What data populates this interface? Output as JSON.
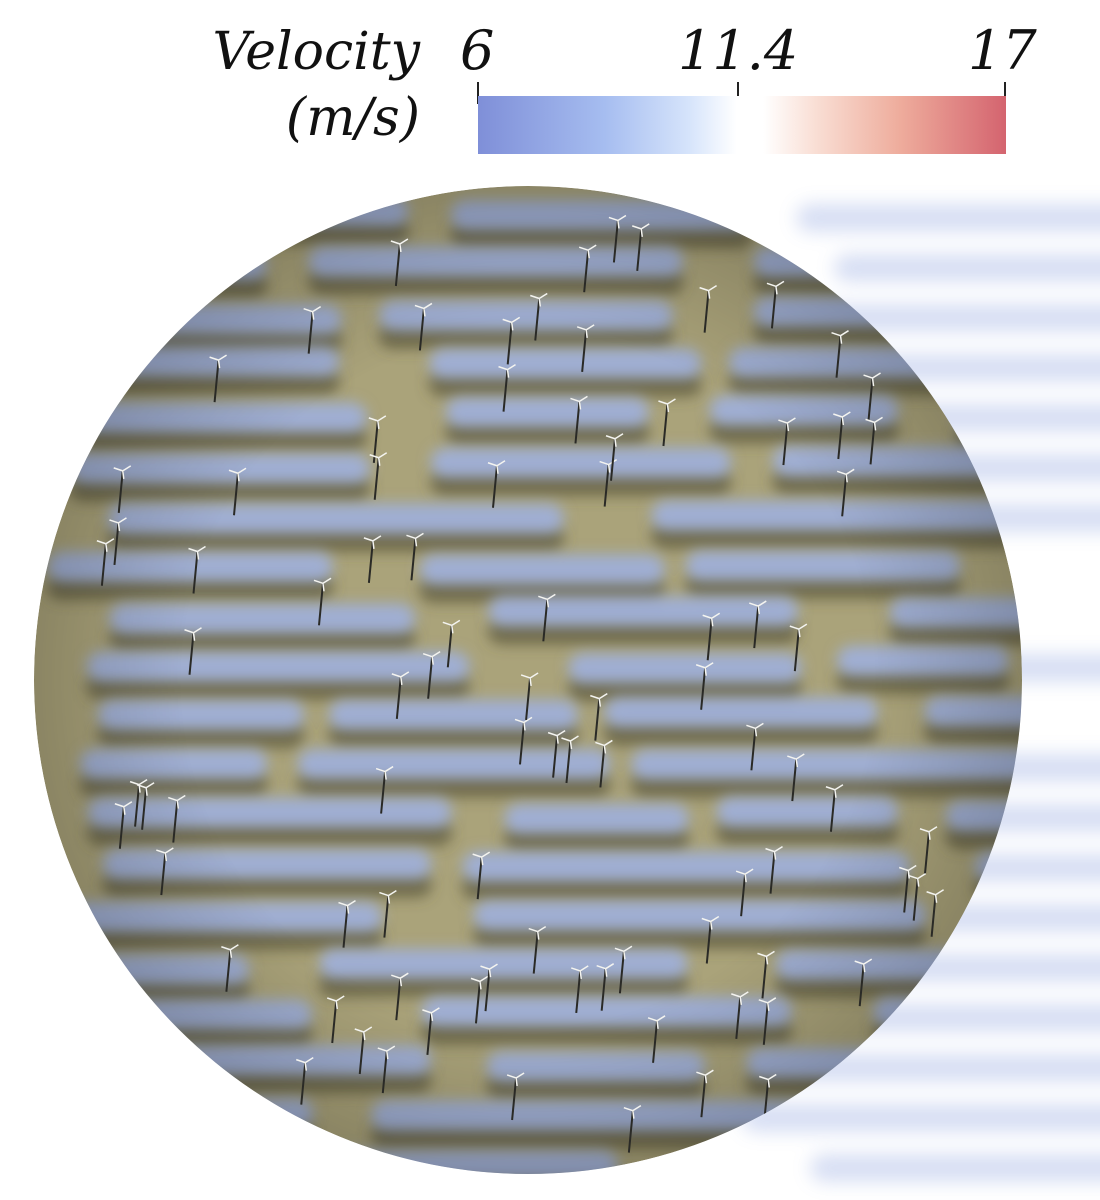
{
  "legend": {
    "title_line1": "Velocity",
    "title_line2": "(m/s)",
    "min_label": "6",
    "mid_label": "11.4",
    "max_label": "17",
    "min_value": 6,
    "mid_value": 11.4,
    "max_value": 17,
    "colors": {
      "low": "#7f8fd8",
      "mid": "#ffffff",
      "high": "#d4646f"
    }
  },
  "scene": {
    "terrain_color": "#aaa37a",
    "shadow_color": "#5c563a",
    "wake_color": "#9fb1e4",
    "turbine_icon": "wind-turbine-icon"
  }
}
